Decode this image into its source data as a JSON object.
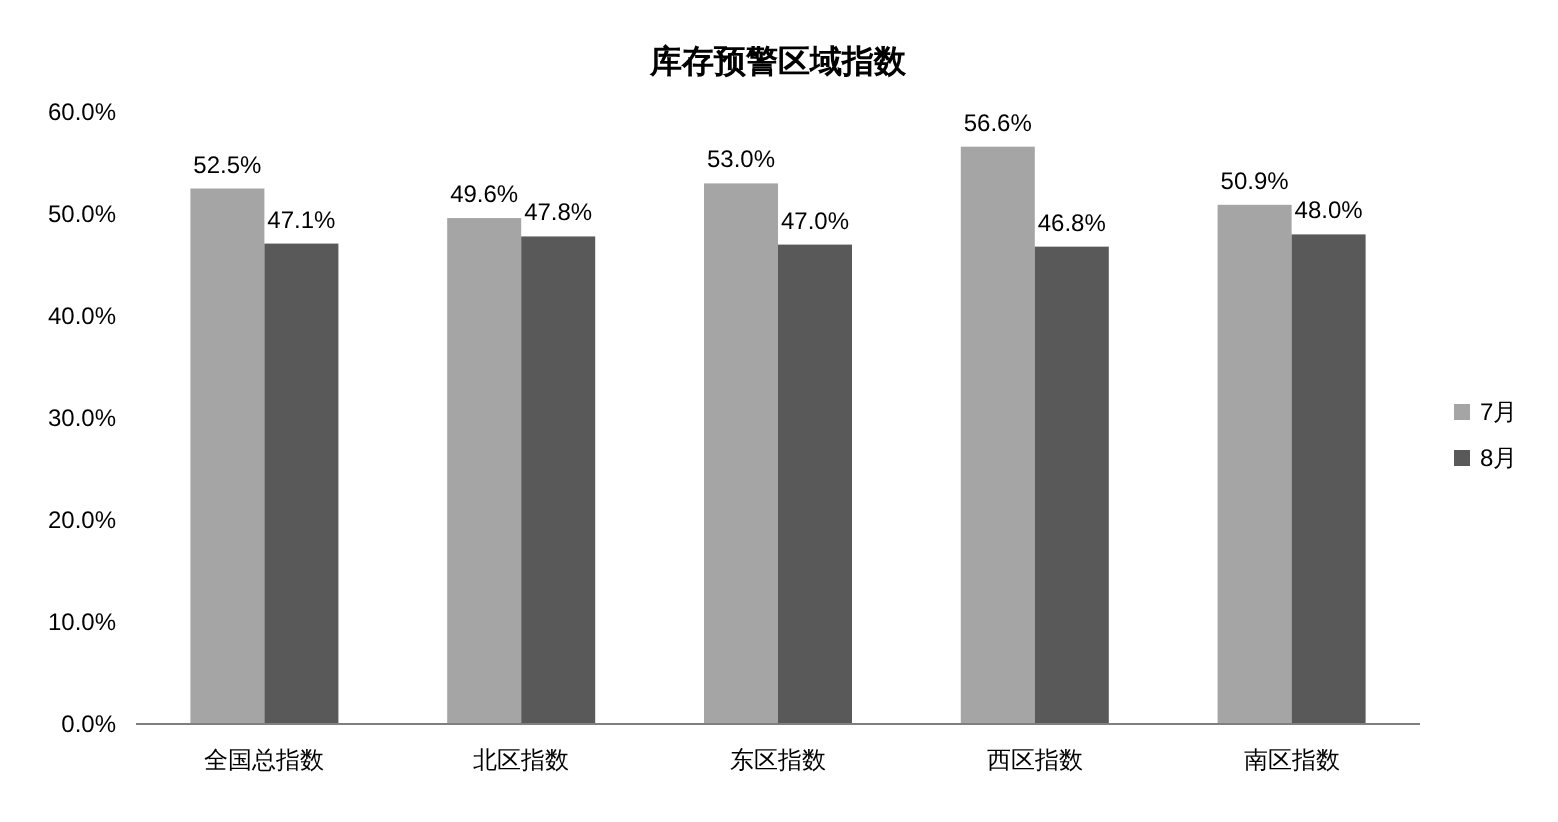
{
  "chart_data": {
    "type": "bar",
    "title": "库存预警区域指数",
    "categories": [
      "全国总指数",
      "北区指数",
      "东区指数",
      "西区指数",
      "南区指数"
    ],
    "series": [
      {
        "name": "7月",
        "color": "#a5a5a5",
        "values": [
          52.5,
          49.6,
          53.0,
          56.6,
          50.9
        ],
        "value_labels": [
          "52.5%",
          "49.6%",
          "53.0%",
          "56.6%",
          "50.9%"
        ]
      },
      {
        "name": "8月",
        "color": "#595959",
        "values": [
          47.1,
          47.8,
          47.0,
          46.8,
          48.0
        ],
        "value_labels": [
          "47.1%",
          "47.8%",
          "47.0%",
          "46.8%",
          "48.0%"
        ]
      }
    ],
    "ylim": [
      0,
      60
    ],
    "yticks": [
      {
        "value": 0,
        "label": "0.0%"
      },
      {
        "value": 10,
        "label": "10.0%"
      },
      {
        "value": 20,
        "label": "20.0%"
      },
      {
        "value": 30,
        "label": "30.0%"
      },
      {
        "value": 40,
        "label": "40.0%"
      },
      {
        "value": 50,
        "label": "50.0%"
      },
      {
        "value": 60,
        "label": "60.0%"
      }
    ],
    "grid": false,
    "legend": "right"
  }
}
